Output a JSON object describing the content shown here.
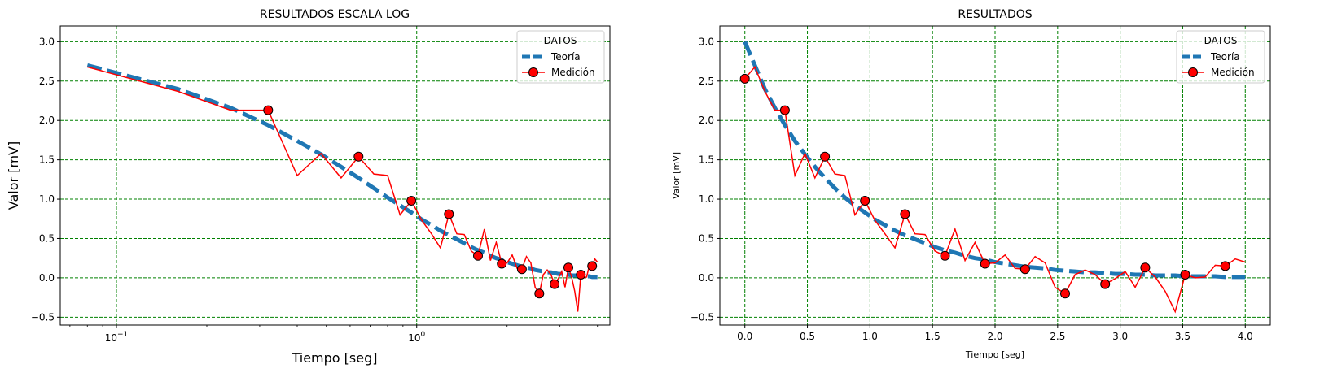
{
  "colors": {
    "teoria": "#1f77b4",
    "medicion": "#ff0000",
    "grid": "#008000",
    "marker_edge": "#000000"
  },
  "chart_data": [
    {
      "type": "line",
      "title": "RESULTADOS ESCALA LOG",
      "xlabel": "Tiempo [seg]",
      "ylabel": "Valor [mV]",
      "xscale": "log",
      "xlim": [
        0.065,
        4.4
      ],
      "ylim": [
        -0.6,
        3.2
      ],
      "xticks": [
        {
          "v": 0.1,
          "b": "10",
          "e": "−1"
        },
        {
          "v": 1,
          "b": "10",
          "e": "0"
        }
      ],
      "yticks": [
        "−0.5",
        "0.0",
        "0.5",
        "1.0",
        "1.5",
        "2.0",
        "2.5",
        "3.0"
      ],
      "grid": true,
      "legend": {
        "title": "DATOS",
        "placement": "top-right",
        "entries": [
          "Teoría",
          "Medición"
        ]
      }
    },
    {
      "type": "line",
      "title": "RESULTADOS",
      "xlabel": "Tiempo [seg]",
      "ylabel": "Valor [mV]",
      "xscale": "linear",
      "xlim": [
        -0.2,
        4.2
      ],
      "ylim": [
        -0.6,
        3.2
      ],
      "xticks": [
        "0.0",
        "0.5",
        "1.0",
        "1.5",
        "2.0",
        "2.5",
        "3.0",
        "3.5",
        "4.0"
      ],
      "yticks": [
        "−0.5",
        "0.0",
        "0.5",
        "1.0",
        "1.5",
        "2.0",
        "2.5",
        "3.0"
      ],
      "grid": true,
      "legend": {
        "title": "DATOS",
        "placement": "top-right",
        "entries": [
          "Teoría",
          "Medición"
        ]
      }
    }
  ],
  "series": {
    "teoria": {
      "name": "Teoría",
      "x": [
        0,
        0.08,
        0.16,
        0.24,
        0.32,
        0.4,
        0.48,
        0.56,
        0.64,
        0.72,
        0.8,
        0.88,
        0.96,
        1.04,
        1.12,
        1.2,
        1.28,
        1.36,
        1.44,
        1.52,
        1.6,
        1.68,
        1.76,
        1.84,
        1.92,
        2.0,
        2.08,
        2.16,
        2.24,
        2.32,
        2.4,
        2.48,
        2.56,
        2.64,
        2.72,
        2.8,
        2.88,
        2.96,
        3.04,
        3.12,
        3.2,
        3.28,
        3.36,
        3.44,
        3.52,
        3.6,
        3.68,
        3.76,
        3.84,
        3.92,
        4.0
      ],
      "y": [
        3.0,
        2.7,
        2.4,
        2.16,
        1.94,
        1.74,
        1.57,
        1.41,
        1.27,
        1.14,
        1.02,
        0.92,
        0.83,
        0.74,
        0.67,
        0.6,
        0.54,
        0.49,
        0.44,
        0.39,
        0.35,
        0.32,
        0.28,
        0.25,
        0.23,
        0.2,
        0.18,
        0.16,
        0.14,
        0.13,
        0.12,
        0.1,
        0.09,
        0.08,
        0.07,
        0.07,
        0.06,
        0.05,
        0.05,
        0.04,
        0.04,
        0.03,
        0.03,
        0.03,
        0.02,
        0.02,
        0.02,
        0.02,
        0.01,
        0.01,
        0.01
      ]
    },
    "medicion_line": {
      "name": "Medición",
      "x": [
        0.0,
        0.08,
        0.16,
        0.24,
        0.32,
        0.4,
        0.48,
        0.56,
        0.64,
        0.72,
        0.8,
        0.88,
        0.96,
        1.04,
        1.12,
        1.2,
        1.28,
        1.36,
        1.44,
        1.52,
        1.6,
        1.68,
        1.76,
        1.84,
        1.92,
        2.0,
        2.08,
        2.16,
        2.24,
        2.32,
        2.4,
        2.48,
        2.56,
        2.64,
        2.72,
        2.8,
        2.88,
        2.96,
        3.04,
        3.12,
        3.2,
        3.28,
        3.36,
        3.44,
        3.52,
        3.6,
        3.68,
        3.76,
        3.84,
        3.92,
        4.0
      ],
      "y": [
        2.53,
        2.68,
        2.37,
        2.13,
        2.13,
        1.3,
        1.58,
        1.27,
        1.54,
        1.32,
        1.3,
        0.8,
        0.98,
        0.73,
        0.56,
        0.38,
        0.81,
        0.56,
        0.55,
        0.34,
        0.28,
        0.62,
        0.22,
        0.45,
        0.18,
        0.19,
        0.29,
        0.12,
        0.11,
        0.27,
        0.19,
        -0.12,
        -0.2,
        0.04,
        0.1,
        0.04,
        -0.08,
        -0.01,
        0.08,
        -0.12,
        0.13,
        0.01,
        -0.17,
        -0.43,
        0.04,
        0.0,
        0.01,
        0.16,
        0.15,
        0.24,
        0.2
      ]
    },
    "medicion_markers": {
      "x": [
        0.0,
        0.32,
        0.64,
        0.96,
        1.28,
        1.6,
        1.92,
        2.24,
        2.56,
        2.88,
        3.2,
        3.52,
        3.84
      ],
      "y": [
        2.53,
        2.13,
        1.54,
        0.98,
        0.81,
        0.28,
        0.18,
        0.11,
        -0.2,
        -0.08,
        0.13,
        0.04,
        0.15
      ]
    }
  }
}
